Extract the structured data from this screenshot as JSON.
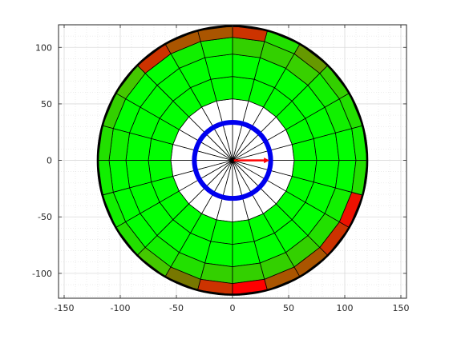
{
  "chart_data": {
    "type": "polar-grid",
    "title": "",
    "xlabel": "",
    "ylabel": "",
    "xlim": [
      -155,
      155
    ],
    "ylim": [
      -122,
      120
    ],
    "xticks": [
      -150,
      -100,
      -50,
      0,
      50,
      100,
      150
    ],
    "yticks": [
      -100,
      -50,
      0,
      50,
      100
    ],
    "xtick_labels": [
      "-150",
      "-100",
      "-50",
      "0",
      "50",
      "100",
      "150"
    ],
    "ytick_labels": [
      "-100",
      "-50",
      "0",
      "50",
      "100"
    ],
    "grid": "on (major and minor)",
    "legend": "none",
    "sectors": 24,
    "ring_edges": [
      0,
      55,
      75,
      95,
      110,
      120
    ],
    "ring_colors": [
      [
        "#ffffff",
        "#ffffff",
        "#ffffff",
        "#ffffff",
        "#ffffff",
        "#ffffff",
        "#ffffff",
        "#ffffff",
        "#ffffff",
        "#ffffff",
        "#ffffff",
        "#ffffff",
        "#ffffff",
        "#ffffff",
        "#ffffff",
        "#ffffff",
        "#ffffff",
        "#ffffff",
        "#ffffff",
        "#ffffff",
        "#ffffff",
        "#ffffff",
        "#ffffff",
        "#ffffff"
      ],
      [
        "#00ff00",
        "#00ff00",
        "#00ff00",
        "#00ff00",
        "#00ff00",
        "#00ff00",
        "#00ff00",
        "#00ff00",
        "#00ff00",
        "#00ff00",
        "#00ff00",
        "#00ff00",
        "#00ff00",
        "#00ff00",
        "#00ff00",
        "#00ff00",
        "#00ff00",
        "#00ff00",
        "#00ff00",
        "#00ff00",
        "#00ff00",
        "#00ff00",
        "#00ff00",
        "#00ff00"
      ],
      [
        "#00ff00",
        "#00ff00",
        "#00ff00",
        "#00ff00",
        "#00ff00",
        "#00ff00",
        "#00ff00",
        "#00ff00",
        "#00ff00",
        "#00ff00",
        "#00ff00",
        "#00ff00",
        "#00ff00",
        "#00ff00",
        "#00ff00",
        "#00ff00",
        "#00ff00",
        "#00ff00",
        "#00ff00",
        "#00ff00",
        "#0ff00",
        "#00ff00",
        "#00ff00",
        "#00ff00"
      ],
      [
        "#00ff00",
        "#11f000",
        "#11f000",
        "#38d000",
        "#33d000",
        "#33d000",
        "#11f000",
        "#11f000",
        "#00ff00",
        "#00ff00",
        "#00ff00",
        "#11f000",
        "#00ff00",
        "#00ff00",
        "#00ff00",
        "#11f000",
        "#22e000",
        "#33d000",
        "#33d000",
        "#33d000",
        "#33d000",
        "#22e000",
        "#11f000",
        "#00ff00"
      ],
      [
        "#11f000",
        "#22e000",
        "#33d000",
        "#669900",
        "#22e000",
        "#cc3300",
        "#aa5500",
        "#aa5500",
        "#cc3300",
        "#44c800",
        "#33d000",
        "#22e000",
        "#11f000",
        "#11f000",
        "#22e000",
        "#44c800",
        "#777700",
        "#cc3300",
        "#ff0000",
        "#aa5500",
        "#aa5500",
        "#cc3300",
        "#ee1100",
        "#22e000"
      ]
    ],
    "arrow": {
      "from": [
        0,
        0
      ],
      "to": [
        33,
        0
      ],
      "color": "#ff0000"
    },
    "circle": {
      "center": [
        0,
        0
      ],
      "radius": 34,
      "color": "#0000ee"
    }
  },
  "colors": {
    "axes_box": "#262626",
    "grid": "#dadada",
    "sector_line": "#000000",
    "arrow": "#ff0000",
    "circle": "#0000ee"
  }
}
